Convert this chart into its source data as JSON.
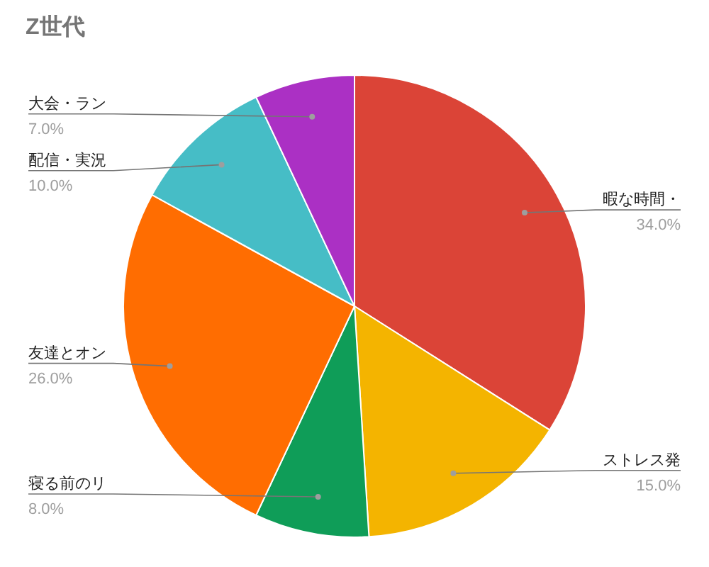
{
  "chart_data": {
    "type": "pie",
    "title": "Z世代",
    "categories": [
      "暇な時間・",
      "ストレス発",
      "寝る前のリ",
      "友達とオン",
      "配信・実況",
      "大会・ラン"
    ],
    "values": [
      34,
      15,
      8,
      26,
      10,
      7
    ],
    "value_labels": [
      "34.0%",
      "15.0%",
      "8.0%",
      "26.0%",
      "10.0%",
      "7.0%"
    ],
    "colors": [
      "#db4437",
      "#f4b400",
      "#0f9d58",
      "#ff6d01",
      "#46bdc6",
      "#ab30c4"
    ]
  }
}
